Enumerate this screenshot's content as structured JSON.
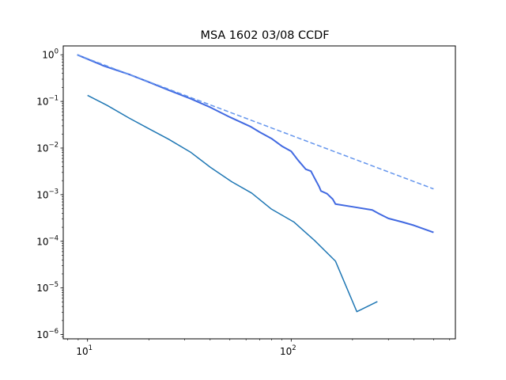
{
  "chart_data": {
    "type": "line",
    "title": "MSA 1602 03/08 CCDF",
    "xlabel": "",
    "ylabel": "",
    "xscale": "log",
    "yscale": "log",
    "xlim": [
      7.6,
      640
    ],
    "ylim": [
      8.1e-07,
      1.55
    ],
    "grid": false,
    "x_ticks": [
      {
        "value": 10,
        "base": "10",
        "exp": "1"
      },
      {
        "value": 100,
        "base": "10",
        "exp": "2"
      }
    ],
    "y_ticks": [
      {
        "value": 1,
        "base": "10",
        "exp": "0"
      },
      {
        "value": 0.1,
        "base": "10",
        "exp": "−1"
      },
      {
        "value": 0.01,
        "base": "10",
        "exp": "−2"
      },
      {
        "value": 0.001,
        "base": "10",
        "exp": "−3"
      },
      {
        "value": 0.0001,
        "base": "10",
        "exp": "−4"
      },
      {
        "value": 1e-05,
        "base": "10",
        "exp": "−5"
      },
      {
        "value": 1e-06,
        "base": "10",
        "exp": "−6"
      }
    ],
    "series": [
      {
        "color": "#4169e1",
        "style": "solid",
        "width": 2,
        "x": [
          8.9,
          12,
          16,
          20,
          25,
          32,
          40,
          50,
          63,
          70,
          80,
          90,
          100,
          108,
          118,
          125,
          130,
          137,
          140,
          150,
          160,
          165,
          200,
          250,
          270,
          300,
          350,
          400,
          500
        ],
        "y": [
          1.0,
          0.58,
          0.38,
          0.26,
          0.175,
          0.115,
          0.075,
          0.046,
          0.029,
          0.022,
          0.016,
          0.011,
          0.0085,
          0.0055,
          0.0035,
          0.0032,
          0.0023,
          0.0015,
          0.0012,
          0.00105,
          0.0008,
          0.00063,
          0.00055,
          0.00047,
          0.00039,
          0.00031,
          0.00026,
          0.00022,
          0.000155
        ]
      },
      {
        "color": "#6495ed",
        "style": "dashed",
        "width": 1.5,
        "x": [
          8.9,
          500
        ],
        "y": [
          1.0,
          0.00133
        ]
      },
      {
        "color": "#1f77b4",
        "style": "solid",
        "width": 1.5,
        "x": [
          10,
          12.5,
          16,
          20,
          25,
          32,
          40,
          51,
          64,
          80,
          103,
          130,
          165,
          210,
          265
        ],
        "y": [
          0.135,
          0.082,
          0.044,
          0.026,
          0.0155,
          0.0082,
          0.0039,
          0.0019,
          0.00108,
          0.00049,
          0.00026,
          0.000105,
          3.75e-05,
          3.1e-06,
          5.1e-06
        ]
      }
    ]
  }
}
